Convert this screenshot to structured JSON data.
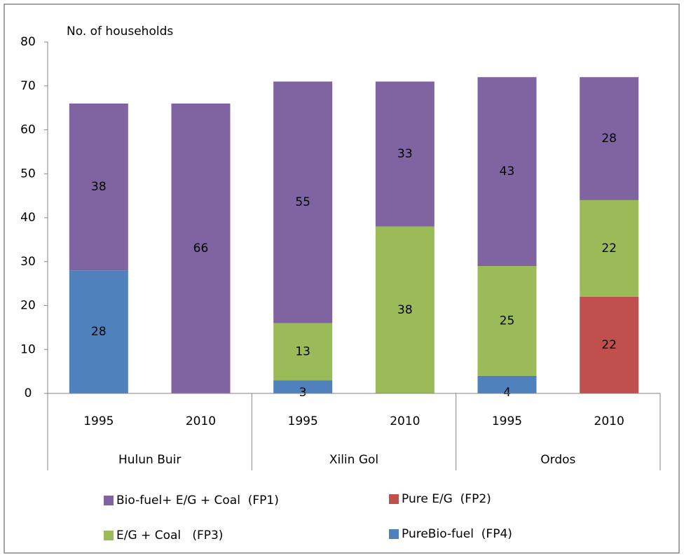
{
  "chart_data": {
    "type": "bar",
    "stacked": true,
    "y_label": "No. of households",
    "categories": [
      "1995",
      "2010",
      "1995",
      "2010",
      "1995",
      "2010"
    ],
    "groups": [
      "Hulun Buir",
      "Xilin Gol",
      "Ordos"
    ],
    "series": [
      {
        "name": "Bio-fuel+ E/G + Coal  (FP1)",
        "color": "#8064a2",
        "values": [
          38,
          66,
          55,
          33,
          43,
          28
        ]
      },
      {
        "name": "Pure E/G  (FP2)",
        "color": "#c0504d",
        "values": [
          null,
          null,
          null,
          null,
          null,
          22
        ]
      },
      {
        "name": "E/G + Coal   (FP3)",
        "color": "#9bbb59",
        "values": [
          null,
          null,
          13,
          38,
          25,
          22
        ]
      },
      {
        "name": "PureBio-fuel  (FP4)",
        "color": "#4f81bd",
        "values": [
          28,
          null,
          3,
          null,
          4,
          null
        ]
      }
    ],
    "ylim": [
      0,
      80
    ],
    "yticks": [
      0,
      10,
      20,
      30,
      40,
      50,
      60,
      70,
      80
    ],
    "grid": false
  }
}
